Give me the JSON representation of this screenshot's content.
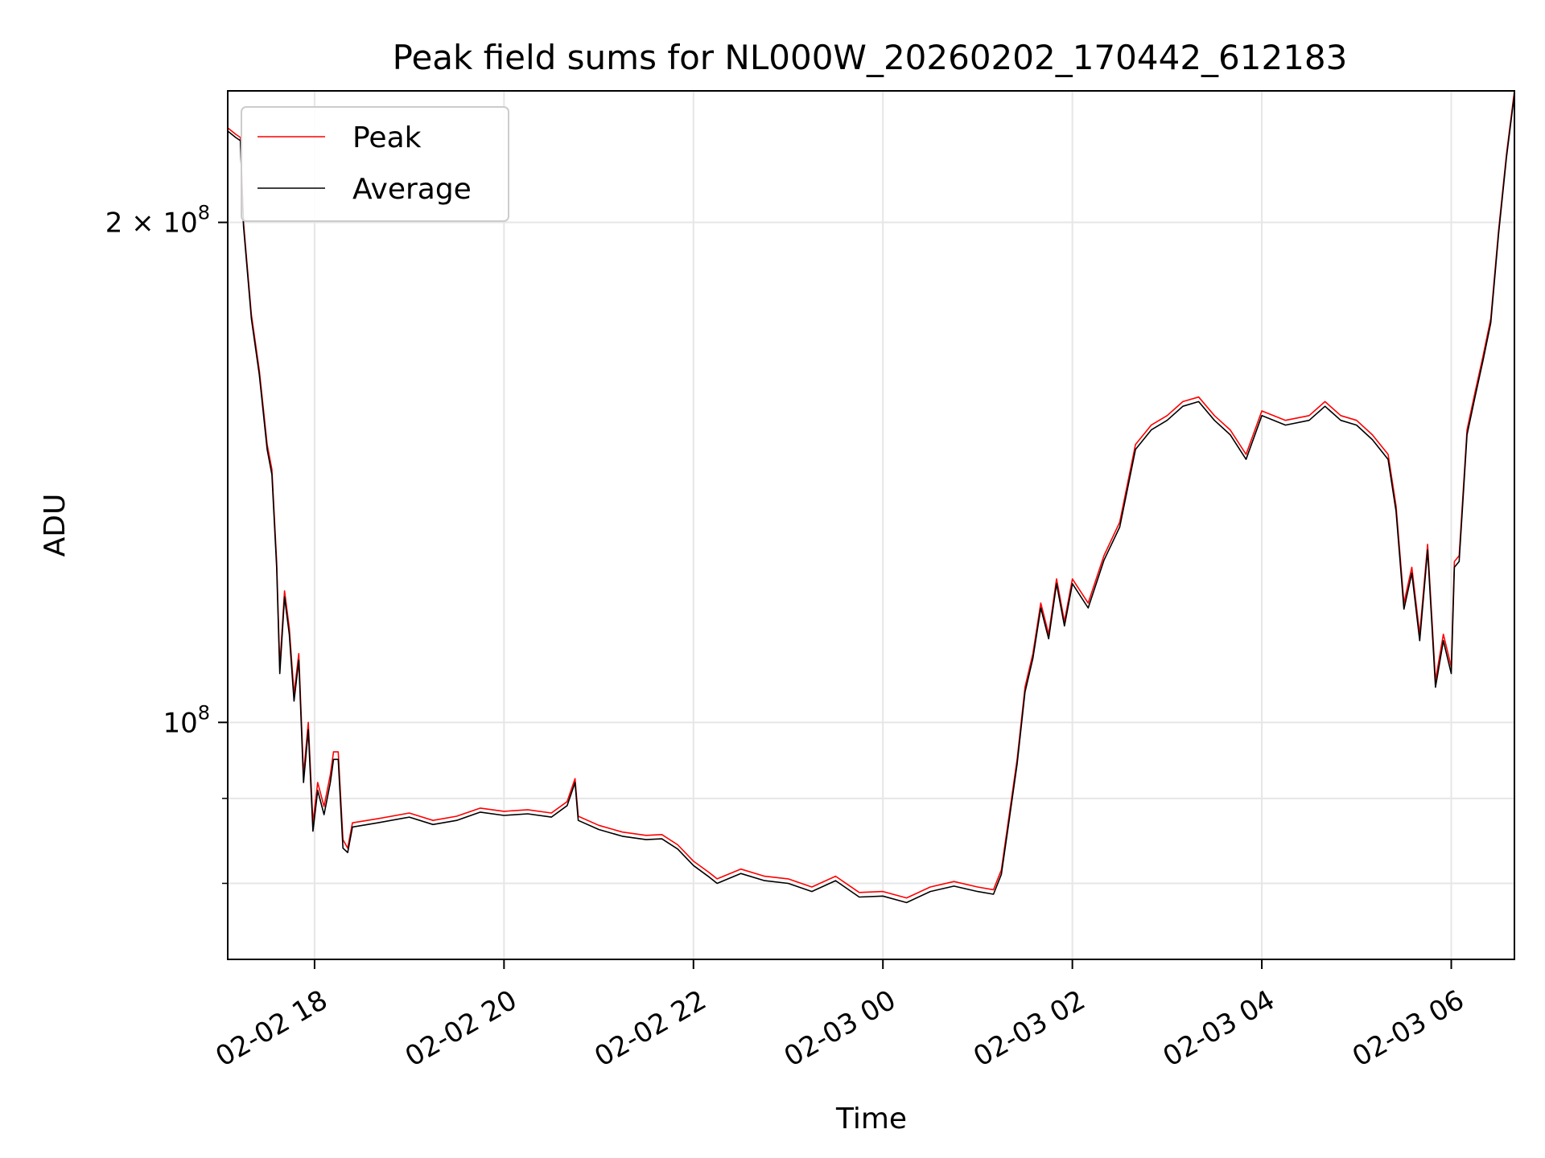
{
  "chart_data": {
    "type": "line",
    "title": "Peak field sums for NL000W_20260202_170442_612183",
    "xlabel": "Time",
    "ylabel": "ADU",
    "yscale": "log",
    "ylim": [
      72000000,
      240000000
    ],
    "xlim": [
      "2026-02-02 17:05",
      "2026-02-03 06:40"
    ],
    "grid": true,
    "legend_position": "upper left",
    "x_ticks": [
      {
        "t": "2026-02-02 18:00",
        "label": "02-02 18"
      },
      {
        "t": "2026-02-02 20:00",
        "label": "02-02 20"
      },
      {
        "t": "2026-02-02 22:00",
        "label": "02-02 22"
      },
      {
        "t": "2026-02-03 00:00",
        "label": "02-03 00"
      },
      {
        "t": "2026-02-03 02:00",
        "label": "02-03 02"
      },
      {
        "t": "2026-02-03 04:00",
        "label": "02-03 04"
      },
      {
        "t": "2026-02-03 06:00",
        "label": "02-03 06"
      }
    ],
    "y_ticks_major": [
      {
        "v": 100000000,
        "base": "10",
        "exp": "8",
        "coef": ""
      },
      {
        "v": 200000000,
        "base": "10",
        "exp": "8",
        "coef": "2"
      }
    ],
    "y_ticks_minor": [
      80000000,
      90000000
    ],
    "series": [
      {
        "name": "Peak",
        "color": "#ff0000",
        "points": [
          [
            "2026-02-02 17:05",
            228
          ],
          [
            "2026-02-02 17:10",
            226
          ],
          [
            "2026-02-02 17:13",
            225
          ],
          [
            "2026-02-02 17:15",
            200
          ],
          [
            "2026-02-02 17:20",
            176
          ],
          [
            "2026-02-02 17:25",
            163
          ],
          [
            "2026-02-02 17:30",
            147
          ],
          [
            "2026-02-02 17:33",
            142
          ],
          [
            "2026-02-02 17:36",
            125
          ],
          [
            "2026-02-02 17:38",
            108
          ],
          [
            "2026-02-02 17:41",
            120
          ],
          [
            "2026-02-02 17:44",
            114
          ],
          [
            "2026-02-02 17:47",
            104
          ],
          [
            "2026-02-02 17:50",
            110
          ],
          [
            "2026-02-02 17:53",
            93
          ],
          [
            "2026-02-02 17:56",
            100
          ],
          [
            "2026-02-02 17:59",
            87
          ],
          [
            "2026-02-02 18:02",
            92
          ],
          [
            "2026-02-02 18:06",
            89
          ],
          [
            "2026-02-02 18:10",
            93
          ],
          [
            "2026-02-02 18:12",
            96
          ],
          [
            "2026-02-02 18:15",
            96
          ],
          [
            "2026-02-02 18:18",
            85
          ],
          [
            "2026-02-02 18:21",
            84
          ],
          [
            "2026-02-02 18:24",
            87
          ],
          [
            "2026-02-02 18:40",
            87.5
          ],
          [
            "2026-02-02 19:00",
            88.2
          ],
          [
            "2026-02-02 19:15",
            87.3
          ],
          [
            "2026-02-02 19:30",
            87.8
          ],
          [
            "2026-02-02 19:45",
            88.8
          ],
          [
            "2026-02-02 20:00",
            88.4
          ],
          [
            "2026-02-02 20:15",
            88.6
          ],
          [
            "2026-02-02 20:30",
            88.2
          ],
          [
            "2026-02-02 20:40",
            89.6
          ],
          [
            "2026-02-02 20:45",
            92.5
          ],
          [
            "2026-02-02 20:47",
            87.8
          ],
          [
            "2026-02-02 21:00",
            86.7
          ],
          [
            "2026-02-02 21:15",
            85.9
          ],
          [
            "2026-02-02 21:30",
            85.5
          ],
          [
            "2026-02-02 21:40",
            85.6
          ],
          [
            "2026-02-02 21:50",
            84.4
          ],
          [
            "2026-02-02 22:00",
            82.5
          ],
          [
            "2026-02-02 22:10",
            81.2
          ],
          [
            "2026-02-02 22:15",
            80.5
          ],
          [
            "2026-02-02 22:30",
            81.6
          ],
          [
            "2026-02-02 22:45",
            80.8
          ],
          [
            "2026-02-02 23:00",
            80.5
          ],
          [
            "2026-02-02 23:15",
            79.6
          ],
          [
            "2026-02-02 23:30",
            80.8
          ],
          [
            "2026-02-02 23:45",
            79.0
          ],
          [
            "2026-02-03 00:00",
            79.1
          ],
          [
            "2026-02-03 00:15",
            78.4
          ],
          [
            "2026-02-03 00:30",
            79.6
          ],
          [
            "2026-02-03 00:45",
            80.2
          ],
          [
            "2026-02-03 01:00",
            79.6
          ],
          [
            "2026-02-03 01:10",
            79.3
          ],
          [
            "2026-02-03 01:15",
            81.5
          ],
          [
            "2026-02-03 01:20",
            88.0
          ],
          [
            "2026-02-03 01:25",
            95.0
          ],
          [
            "2026-02-03 01:30",
            105.0
          ],
          [
            "2026-02-03 01:35",
            110.0
          ],
          [
            "2026-02-03 01:40",
            118.0
          ],
          [
            "2026-02-03 01:45",
            113.0
          ],
          [
            "2026-02-03 01:50",
            122.0
          ],
          [
            "2026-02-03 01:55",
            115.0
          ],
          [
            "2026-02-03 02:00",
            122.0
          ],
          [
            "2026-02-03 02:10",
            118.0
          ],
          [
            "2026-02-03 02:20",
            126.0
          ],
          [
            "2026-02-03 02:30",
            132.0
          ],
          [
            "2026-02-03 02:40",
            147.0
          ],
          [
            "2026-02-03 02:50",
            151.0
          ],
          [
            "2026-02-03 03:00",
            153.0
          ],
          [
            "2026-02-03 03:10",
            156.0
          ],
          [
            "2026-02-03 03:20",
            157.0
          ],
          [
            "2026-02-03 03:30",
            153.0
          ],
          [
            "2026-02-03 03:40",
            150.0
          ],
          [
            "2026-02-03 03:50",
            145.0
          ],
          [
            "2026-02-03 04:00",
            154.0
          ],
          [
            "2026-02-03 04:15",
            152.0
          ],
          [
            "2026-02-03 04:30",
            153.0
          ],
          [
            "2026-02-03 04:40",
            156.0
          ],
          [
            "2026-02-03 04:50",
            153.0
          ],
          [
            "2026-02-03 05:00",
            152.0
          ],
          [
            "2026-02-03 05:10",
            149.0
          ],
          [
            "2026-02-03 05:20",
            145.0
          ],
          [
            "2026-02-03 05:25",
            135.0
          ],
          [
            "2026-02-03 05:30",
            118.0
          ],
          [
            "2026-02-03 05:35",
            124.0
          ],
          [
            "2026-02-03 05:40",
            113.0
          ],
          [
            "2026-02-03 05:45",
            128.0
          ],
          [
            "2026-02-03 05:50",
            106.0
          ],
          [
            "2026-02-03 05:55",
            113.0
          ],
          [
            "2026-02-03 06:00",
            108.0
          ],
          [
            "2026-02-03 06:02",
            125.0
          ],
          [
            "2026-02-03 06:05",
            126.0
          ],
          [
            "2026-02-03 06:10",
            150.0
          ],
          [
            "2026-02-03 06:15",
            158.0
          ],
          [
            "2026-02-03 06:20",
            166.0
          ],
          [
            "2026-02-03 06:25",
            175.0
          ],
          [
            "2026-02-03 06:30",
            198.0
          ],
          [
            "2026-02-03 06:35",
            220.0
          ],
          [
            "2026-02-03 06:40",
            240.0
          ]
        ]
      },
      {
        "name": "Average",
        "color": "#000000",
        "points": [
          [
            "2026-02-02 17:05",
            227
          ],
          [
            "2026-02-02 17:10",
            225
          ],
          [
            "2026-02-02 17:13",
            224
          ],
          [
            "2026-02-02 17:15",
            199
          ],
          [
            "2026-02-02 17:20",
            175
          ],
          [
            "2026-02-02 17:25",
            162
          ],
          [
            "2026-02-02 17:30",
            146
          ],
          [
            "2026-02-02 17:33",
            141
          ],
          [
            "2026-02-02 17:36",
            124
          ],
          [
            "2026-02-02 17:38",
            107
          ],
          [
            "2026-02-02 17:41",
            119
          ],
          [
            "2026-02-02 17:44",
            113
          ],
          [
            "2026-02-02 17:47",
            103
          ],
          [
            "2026-02-02 17:50",
            109
          ],
          [
            "2026-02-02 17:53",
            92
          ],
          [
            "2026-02-02 17:56",
            99
          ],
          [
            "2026-02-02 17:59",
            86
          ],
          [
            "2026-02-02 18:02",
            91
          ],
          [
            "2026-02-02 18:06",
            88
          ],
          [
            "2026-02-02 18:10",
            92
          ],
          [
            "2026-02-02 18:12",
            95
          ],
          [
            "2026-02-02 18:15",
            95
          ],
          [
            "2026-02-02 18:18",
            84
          ],
          [
            "2026-02-02 18:21",
            83.5
          ],
          [
            "2026-02-02 18:24",
            86.5
          ],
          [
            "2026-02-02 18:40",
            87.0
          ],
          [
            "2026-02-02 19:00",
            87.7
          ],
          [
            "2026-02-02 19:15",
            86.8
          ],
          [
            "2026-02-02 19:30",
            87.3
          ],
          [
            "2026-02-02 19:45",
            88.3
          ],
          [
            "2026-02-02 20:00",
            87.9
          ],
          [
            "2026-02-02 20:15",
            88.1
          ],
          [
            "2026-02-02 20:30",
            87.7
          ],
          [
            "2026-02-02 20:40",
            89.1
          ],
          [
            "2026-02-02 20:45",
            92.0
          ],
          [
            "2026-02-02 20:47",
            87.3
          ],
          [
            "2026-02-02 21:00",
            86.2
          ],
          [
            "2026-02-02 21:15",
            85.4
          ],
          [
            "2026-02-02 21:30",
            85.0
          ],
          [
            "2026-02-02 21:40",
            85.1
          ],
          [
            "2026-02-02 21:50",
            83.9
          ],
          [
            "2026-02-02 22:00",
            82.0
          ],
          [
            "2026-02-02 22:10",
            80.7
          ],
          [
            "2026-02-02 22:15",
            80.0
          ],
          [
            "2026-02-02 22:30",
            81.1
          ],
          [
            "2026-02-02 22:45",
            80.3
          ],
          [
            "2026-02-02 23:00",
            80.0
          ],
          [
            "2026-02-02 23:15",
            79.1
          ],
          [
            "2026-02-02 23:30",
            80.3
          ],
          [
            "2026-02-02 23:45",
            78.5
          ],
          [
            "2026-02-03 00:00",
            78.6
          ],
          [
            "2026-02-03 00:15",
            77.9
          ],
          [
            "2026-02-03 00:30",
            79.1
          ],
          [
            "2026-02-03 00:45",
            79.7
          ],
          [
            "2026-02-03 01:00",
            79.1
          ],
          [
            "2026-02-03 01:10",
            78.8
          ],
          [
            "2026-02-03 01:15",
            81.0
          ],
          [
            "2026-02-03 01:20",
            87.4
          ],
          [
            "2026-02-03 01:25",
            94.4
          ],
          [
            "2026-02-03 01:30",
            104.3
          ],
          [
            "2026-02-03 01:35",
            109.3
          ],
          [
            "2026-02-03 01:40",
            117.2
          ],
          [
            "2026-02-03 01:45",
            112.3
          ],
          [
            "2026-02-03 01:50",
            121.2
          ],
          [
            "2026-02-03 01:55",
            114.3
          ],
          [
            "2026-02-03 02:00",
            121.2
          ],
          [
            "2026-02-03 02:10",
            117.2
          ],
          [
            "2026-02-03 02:20",
            125.2
          ],
          [
            "2026-02-03 02:30",
            131.1
          ],
          [
            "2026-02-03 02:40",
            146.0
          ],
          [
            "2026-02-03 02:50",
            150.0
          ],
          [
            "2026-02-03 03:00",
            152.0
          ],
          [
            "2026-02-03 03:10",
            155.0
          ],
          [
            "2026-02-03 03:20",
            156.0
          ],
          [
            "2026-02-03 03:30",
            152.0
          ],
          [
            "2026-02-03 03:40",
            149.0
          ],
          [
            "2026-02-03 03:50",
            144.0
          ],
          [
            "2026-02-03 04:00",
            153.0
          ],
          [
            "2026-02-03 04:15",
            151.0
          ],
          [
            "2026-02-03 04:30",
            152.0
          ],
          [
            "2026-02-03 04:40",
            155.0
          ],
          [
            "2026-02-03 04:50",
            152.0
          ],
          [
            "2026-02-03 05:00",
            151.0
          ],
          [
            "2026-02-03 05:10",
            148.0
          ],
          [
            "2026-02-03 05:20",
            144.0
          ],
          [
            "2026-02-03 05:25",
            134.0
          ],
          [
            "2026-02-03 05:30",
            117.0
          ],
          [
            "2026-02-03 05:35",
            123.0
          ],
          [
            "2026-02-03 05:40",
            112.0
          ],
          [
            "2026-02-03 05:45",
            127.0
          ],
          [
            "2026-02-03 05:50",
            105.0
          ],
          [
            "2026-02-03 05:55",
            112.0
          ],
          [
            "2026-02-03 06:00",
            107.0
          ],
          [
            "2026-02-03 06:02",
            124.0
          ],
          [
            "2026-02-03 06:05",
            125.0
          ],
          [
            "2026-02-03 06:10",
            149.0
          ],
          [
            "2026-02-03 06:15",
            157.0
          ],
          [
            "2026-02-03 06:20",
            165.0
          ],
          [
            "2026-02-03 06:25",
            174.0
          ],
          [
            "2026-02-03 06:30",
            197.0
          ],
          [
            "2026-02-03 06:35",
            219.0
          ],
          [
            "2026-02-03 06:40",
            239.0
          ]
        ]
      }
    ]
  }
}
